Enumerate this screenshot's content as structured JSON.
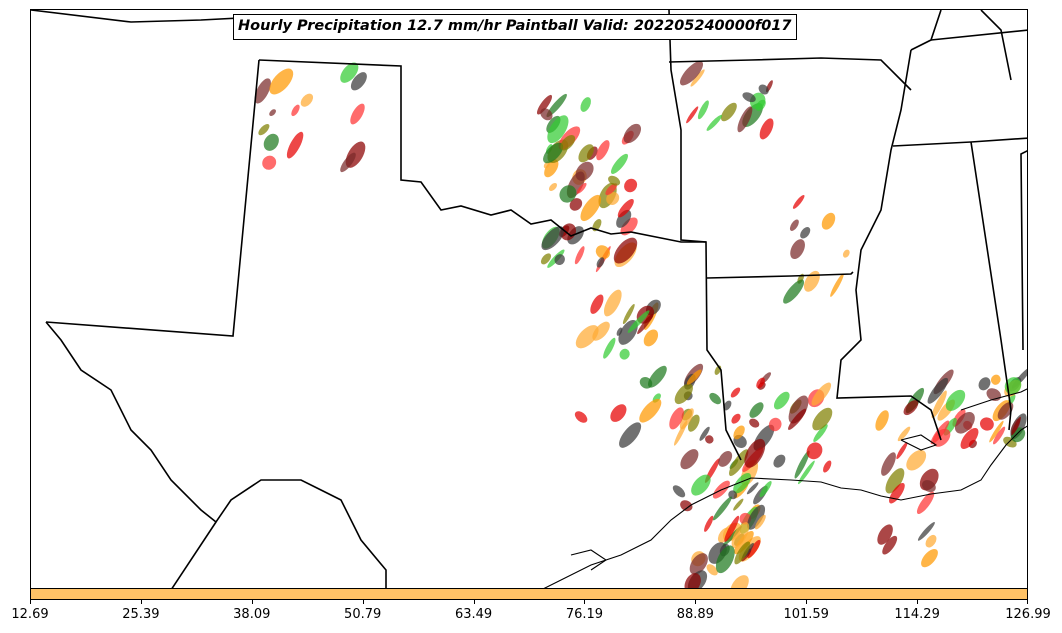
{
  "title": "Hourly Precipitation 12.7 mm/hr Paintball Valid: 202205240000f017",
  "colorbar": {
    "color": "#ffc266",
    "ticks": [
      "12.69",
      "25.39",
      "38.09",
      "50.79",
      "63.49",
      "76.19",
      "88.89",
      "101.59",
      "114.29",
      "126.99"
    ]
  },
  "member_colors": [
    "#33cc33",
    "#ff9900",
    "#ffaa33",
    "#e60000",
    "#8b0000",
    "#808000",
    "#3a3a3a",
    "#1f7a1f",
    "#7a2a2a",
    "#ff3333"
  ]
}
